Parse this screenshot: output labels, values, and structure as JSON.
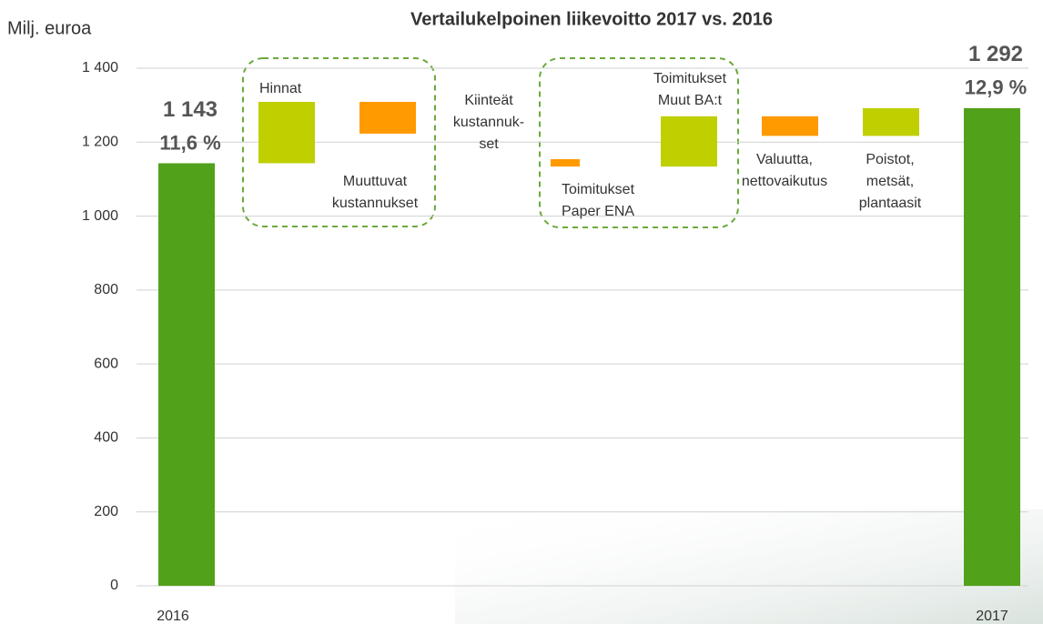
{
  "chart_data": {
    "type": "waterfall",
    "title": "Vertailukelpoinen liikevoitto 2017 vs. 2016",
    "y_label": "Milj. euroa",
    "categories": [
      [
        "2016"
      ],
      [
        "Hinnat"
      ],
      [
        "Muuttuvat",
        "kustannukset"
      ],
      [
        "Kiinteät",
        "kustannuk-",
        "set"
      ],
      [
        "Toimitukset",
        "Paper ENA"
      ],
      [
        "Toimitukset",
        "Muut BA:t"
      ],
      [
        "Valuutta,",
        "nettovaikutus"
      ],
      [
        "Poistot,",
        "metsät,",
        "plantaasit"
      ],
      [
        "2017"
      ]
    ],
    "low": [
      0,
      1143,
      1223,
      null,
      1134,
      1134,
      1217,
      1217,
      0
    ],
    "high": [
      1143,
      1309,
      1309,
      null,
      1154,
      1270,
      1270,
      1292,
      1292
    ],
    "value_labels": [
      "1 143",
      null,
      null,
      null,
      null,
      null,
      null,
      null,
      "1 292"
    ],
    "margin_labels": [
      "11,6 %",
      null,
      null,
      null,
      null,
      null,
      null,
      null,
      "12,9 %"
    ],
    "colors": [
      "#52a11a",
      "#bfcf00",
      "#ff9a00",
      null,
      "#ff9a00",
      "#bfcf00",
      "#ff9a00",
      "#bfcf00",
      "#52a11a"
    ],
    "ylim": [
      0,
      1400
    ],
    "yticks": [
      0,
      200,
      400,
      600,
      800,
      {
        "value": 1000,
        "label": "1 000"
      },
      {
        "value": 1200,
        "label": "1 200"
      },
      {
        "value": 1400,
        "label": "1 400"
      }
    ],
    "grid": true
  }
}
